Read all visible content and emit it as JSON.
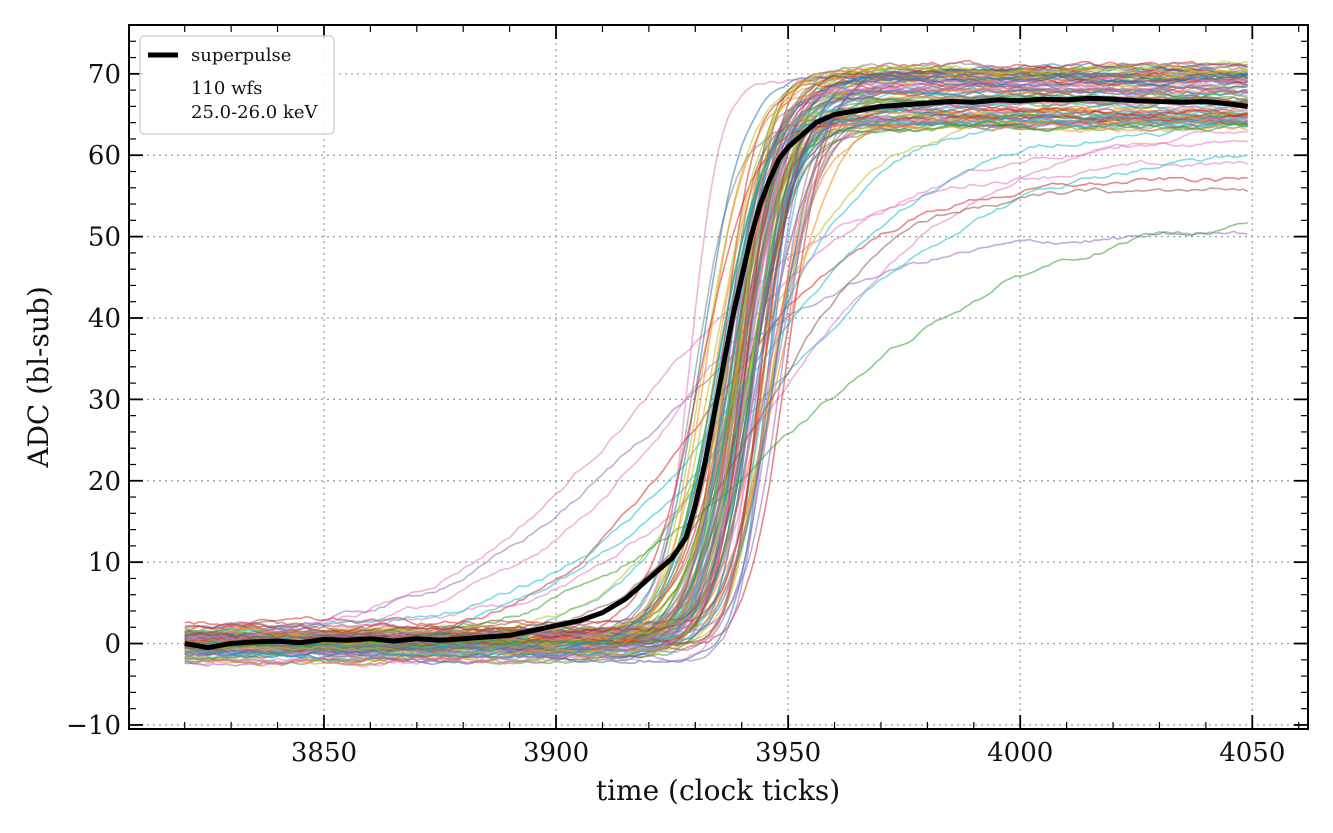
{
  "chart_data": {
    "type": "line",
    "xlabel": "time (clock ticks)",
    "ylabel": "ADC (bl-sub)",
    "xlim": [
      3808,
      4062
    ],
    "ylim": [
      -10.5,
      76
    ],
    "xticks": [
      3850,
      3900,
      3950,
      4000,
      4050
    ],
    "yticks": [
      -10,
      0,
      10,
      20,
      30,
      40,
      50,
      60,
      70
    ],
    "xtick_labels": [
      "3850",
      "3900",
      "3950",
      "4000",
      "4050"
    ],
    "ytick_labels": [
      "−10",
      "0",
      "10",
      "20",
      "30",
      "40",
      "50",
      "60",
      "70"
    ],
    "grid": true,
    "legend": {
      "placement": "top-left",
      "line_label": "superpulse",
      "count_text": "110 wfs",
      "energy_text": "25.0-26.0 keV"
    },
    "individual_waveforms": {
      "count": 110,
      "x_start": 3820,
      "x_end": 4049,
      "typical_rise_midpoint": 3940,
      "typical_baseline": 0,
      "typical_plateau_range": [
        63,
        71
      ],
      "colors": [
        "#1f77b4",
        "#ff7f0e",
        "#2ca02c",
        "#d62728",
        "#9467bd",
        "#8c564b",
        "#e377c2",
        "#7f7f7f",
        "#bcbd22",
        "#17becf"
      ]
    },
    "series": [
      {
        "name": "superpulse",
        "color": "#000000",
        "x": [
          3820,
          3825,
          3830,
          3835,
          3840,
          3845,
          3850,
          3855,
          3860,
          3865,
          3870,
          3875,
          3880,
          3885,
          3890,
          3895,
          3900,
          3905,
          3910,
          3915,
          3920,
          3925,
          3928,
          3930,
          3932,
          3934,
          3936,
          3938,
          3940,
          3942,
          3944,
          3946,
          3948,
          3950,
          3952,
          3954,
          3956,
          3958,
          3960,
          3965,
          3970,
          3975,
          3980,
          3985,
          3990,
          3995,
          4000,
          4005,
          4010,
          4015,
          4020,
          4025,
          4030,
          4035,
          4040,
          4045,
          4049
        ],
        "values": [
          0.0,
          -0.5,
          0.0,
          0.2,
          0.3,
          0.1,
          0.5,
          0.4,
          0.6,
          0.3,
          0.6,
          0.4,
          0.6,
          0.8,
          1.0,
          1.6,
          2.2,
          2.8,
          3.8,
          5.5,
          8.0,
          10.5,
          13.0,
          17.0,
          22.0,
          28.0,
          34.0,
          40.0,
          45.0,
          50.0,
          54.0,
          57.0,
          59.5,
          61.0,
          62.0,
          63.0,
          64.0,
          64.5,
          65.0,
          65.5,
          66.0,
          66.2,
          66.4,
          66.6,
          66.5,
          66.8,
          66.7,
          66.9,
          66.8,
          67.0,
          66.9,
          66.7,
          66.6,
          66.5,
          66.6,
          66.3,
          66.0
        ]
      }
    ]
  }
}
